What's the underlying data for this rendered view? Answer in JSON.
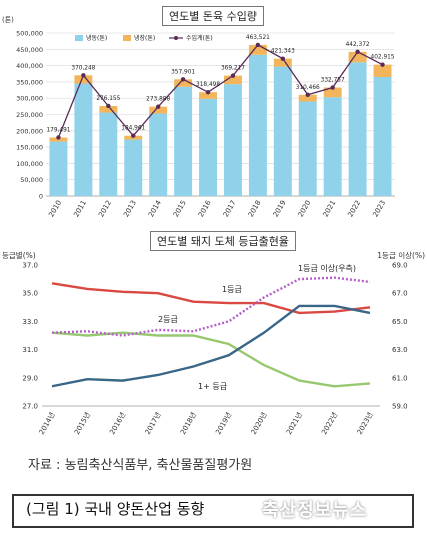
{
  "colors": {
    "pork_bar": "#8fd2ea",
    "beef_bar": "#f3b55b",
    "total_line": "#5a2b59",
    "grade1": "#d94842",
    "grade2": "#97c870",
    "grade1plus": "#3a6687",
    "grade1up": "#b45fc9"
  },
  "chart_data": [
    {
      "type": "bar",
      "title": "연도별 돈육 수입량",
      "ylabel": "(톤)",
      "ylim": [
        0,
        500000
      ],
      "yticks": [
        "0",
        "50,000",
        "100,000",
        "150,000",
        "200,000",
        "250,000",
        "300,000",
        "350,000",
        "400,000",
        "450,000",
        "500,000"
      ],
      "categories": [
        "2010",
        "2011",
        "2012",
        "2013",
        "2014",
        "2015",
        "2016",
        "2017",
        "2018",
        "2019",
        "2020",
        "2021",
        "2022",
        "2023"
      ],
      "stacked": true,
      "legend": [
        "냉동(톤)",
        "냉장(톤)",
        "수입계(톤)"
      ],
      "series": [
        {
          "name": "냉동(톤)",
          "values": [
            167000,
            345000,
            256000,
            173000,
            253000,
            335000,
            298000,
            343000,
            433000,
            397000,
            290000,
            303000,
            410000,
            365000
          ]
        },
        {
          "name": "냉장(톤)",
          "values": [
            12491,
            25248,
            20155,
            11961,
            20888,
            22901,
            20498,
            26217,
            30521,
            24343,
            20466,
            29757,
            32372,
            37915
          ]
        },
        {
          "name": "수입계(톤)",
          "type": "line",
          "values": [
            179491,
            370248,
            276155,
            184961,
            273888,
            357901,
            318498,
            369217,
            463521,
            421343,
            310466,
            332757,
            442372,
            402915
          ]
        }
      ],
      "data_labels": [
        "179,491",
        "370,248",
        "276,155",
        "184,961",
        "273,888",
        "357,901",
        "318,498",
        "369,217",
        "463,521",
        "421,343",
        "310,466",
        "332,757",
        "442,372",
        "402,915"
      ]
    },
    {
      "type": "line",
      "title": "연도별 돼지 도체 등급출현율",
      "ylabel": "등급별(%)",
      "y2label": "1등급 이상(%)",
      "ylim": [
        27.0,
        37.0
      ],
      "y2lim": [
        59.0,
        69.0
      ],
      "yticks": [
        "27.0",
        "29.0",
        "31.0",
        "33.0",
        "35.0",
        "37.0"
      ],
      "y2ticks": [
        "59.0",
        "61.0",
        "63.0",
        "65.0",
        "67.0",
        "69.0"
      ],
      "categories": [
        "2014년",
        "2015년",
        "2016년",
        "2017년",
        "2018년",
        "2019년",
        "2020년",
        "2021년",
        "2022년",
        "2023년"
      ],
      "series": [
        {
          "name": "1등급",
          "axis": "left",
          "values": [
            35.7,
            35.3,
            35.1,
            35.0,
            34.4,
            34.3,
            34.3,
            33.6,
            33.7,
            34.0
          ]
        },
        {
          "name": "2등급",
          "axis": "left",
          "values": [
            32.2,
            32.0,
            32.2,
            32.0,
            32.0,
            31.4,
            29.9,
            28.8,
            28.4,
            28.6
          ]
        },
        {
          "name": "1+ 등급",
          "axis": "left",
          "values": [
            28.4,
            28.9,
            28.8,
            29.2,
            29.8,
            30.6,
            32.2,
            34.1,
            34.1,
            33.6
          ]
        },
        {
          "name": "1등급 이상(우측)",
          "axis": "right",
          "values": [
            64.2,
            64.3,
            64.0,
            64.4,
            64.3,
            65.0,
            66.7,
            68.0,
            68.1,
            67.8
          ]
        }
      ]
    }
  ],
  "source": "자료 : 농림축산식품부, 축산물품질평가원",
  "caption": "(그림 1) 국내 양돈산업 동향",
  "watermark": "축산정보뉴스"
}
